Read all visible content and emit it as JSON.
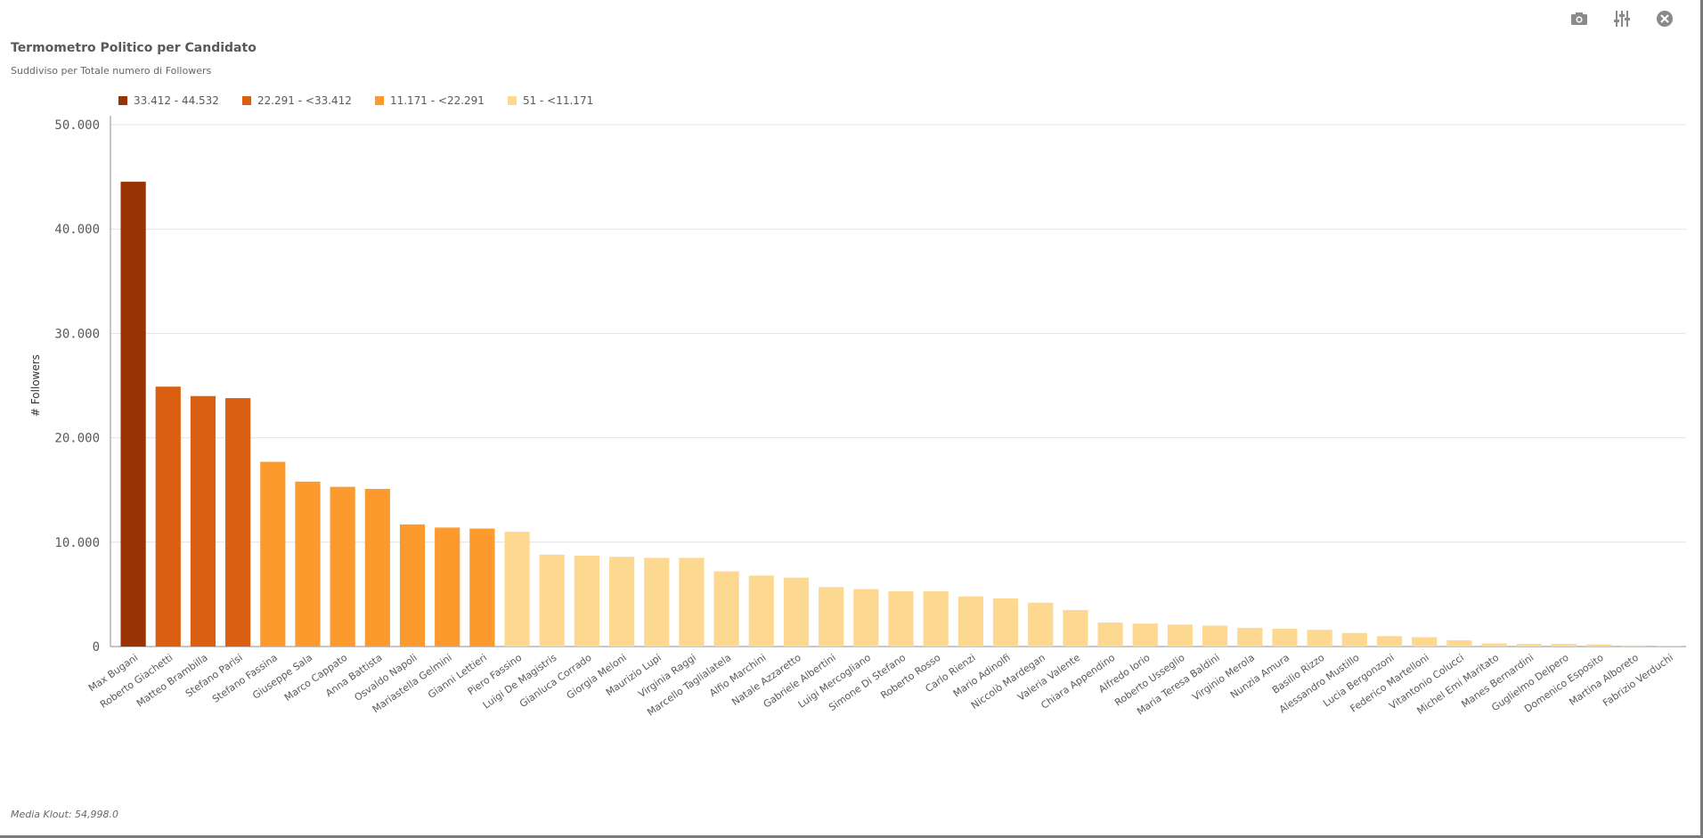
{
  "title": "Termometro Politico per Candidato",
  "subtitle": "Suddiviso per Totale numero di Followers",
  "footer": "Media Klout: 54,998.0",
  "toolbar": [
    {
      "icon": "camera-icon"
    },
    {
      "icon": "sliders-icon"
    },
    {
      "icon": "close-icon"
    }
  ],
  "legend": [
    {
      "label": "33.412 - 44.532",
      "color": "#9a3303"
    },
    {
      "label": "22.291 - <33.412",
      "color": "#db5f10"
    },
    {
      "label": "11.171 - <22.291",
      "color": "#fd9a2e"
    },
    {
      "label": "51 - <11.171",
      "color": "#fdd890"
    }
  ],
  "chart_data": {
    "type": "bar",
    "ylabel": "# Followers",
    "xlabel": "",
    "ylim": [
      0,
      50000
    ],
    "yticks": [
      0,
      10000,
      20000,
      30000,
      40000,
      50000
    ],
    "ytick_labels": [
      "0",
      "10.000",
      "20.000",
      "30.000",
      "40.000",
      "50.000"
    ],
    "grid": true,
    "legend_position": "top-left",
    "categories": [
      "Max Bugani",
      "Roberto Giachetti",
      "Matteo Brambilla",
      "Stefano Parisi",
      "Stefano Fassina",
      "Giuseppe Sala",
      "Marco Cappato",
      "Anna Battista",
      "Osvaldo Napoli",
      "Mariastella Gelmini",
      "Gianni Lettieri",
      "Piero Fassino",
      "Luigi De Magistris",
      "Gianluca Corrado",
      "Giorgia Meloni",
      "Maurizio Lupi",
      "Virginia Raggi",
      "Marcello Taglialatela",
      "Alfio Marchini",
      "Natale Azzaretto",
      "Gabriele Albertini",
      "Luigi Mercogliano",
      "Simone Di Stefano",
      "Roberto Rosso",
      "Carlo Rienzi",
      "Mario Adinolfi",
      "Niccolò Mardegan",
      "Valeria Valente",
      "Chiara Appendino",
      "Alfredo Iorio",
      "Roberto Usseglio",
      "Maria Teresa Baldini",
      "Virginio Merola",
      "Nunzia Amura",
      "Basilio Rizzo",
      "Alessandro Mustillo",
      "Lucia Bergonzoni",
      "Federico Martelloni",
      "Vitantonio Colucci",
      "Michel Emi Maritato",
      "Manes Bernardini",
      "Guglielmo Delpero",
      "Domenico Esposito",
      "Martina Alboreto",
      "Fabrizio Verduchi"
    ],
    "values": [
      44532,
      24900,
      24000,
      23800,
      17700,
      15800,
      15300,
      15100,
      11700,
      11400,
      11300,
      11000,
      8800,
      8700,
      8600,
      8500,
      8500,
      7200,
      6800,
      6600,
      5700,
      5500,
      5300,
      5300,
      4800,
      4600,
      4200,
      3500,
      2300,
      2200,
      2100,
      2000,
      1800,
      1700,
      1600,
      1300,
      1000,
      900,
      600,
      300,
      250,
      250,
      200,
      100,
      51
    ],
    "bar_colors": [
      "#9a3303",
      "#db5f10",
      "#db5f10",
      "#db5f10",
      "#fd9a2e",
      "#fd9a2e",
      "#fd9a2e",
      "#fd9a2e",
      "#fd9a2e",
      "#fd9a2e",
      "#fd9a2e",
      "#fdd890",
      "#fdd890",
      "#fdd890",
      "#fdd890",
      "#fdd890",
      "#fdd890",
      "#fdd890",
      "#fdd890",
      "#fdd890",
      "#fdd890",
      "#fdd890",
      "#fdd890",
      "#fdd890",
      "#fdd890",
      "#fdd890",
      "#fdd890",
      "#fdd890",
      "#fdd890",
      "#fdd890",
      "#fdd890",
      "#fdd890",
      "#fdd890",
      "#fdd890",
      "#fdd890",
      "#fdd890",
      "#fdd890",
      "#fdd890",
      "#fdd890",
      "#fdd890",
      "#fdd890",
      "#fdd890",
      "#fdd890",
      "#fdd890",
      "#fdd890"
    ]
  }
}
